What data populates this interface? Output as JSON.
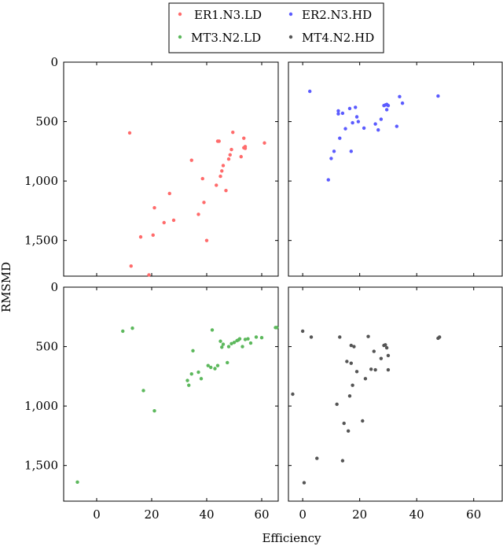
{
  "figure": {
    "xlabel": "Efficiency",
    "ylabel": "RMSMD"
  },
  "legend": {
    "placement": "top-center",
    "entries": [
      {
        "name": "ER1.N3.LD",
        "color": "#ff6b6b"
      },
      {
        "name": "ER2.N3.HD",
        "color": "#5b5bff"
      },
      {
        "name": "MT3.N2.LD",
        "color": "#5cb85c"
      },
      {
        "name": "MT4.N2.HD",
        "color": "#555555"
      }
    ]
  },
  "chart_data": [
    {
      "type": "scatter",
      "name": "ER1.N3.LD",
      "color": "#ff6b6b",
      "panel": "top-left",
      "xlim": [
        -12,
        66
      ],
      "ylim": [
        1800,
        0
      ],
      "y_inverted": true,
      "xticks": [],
      "yticks": [
        0,
        500,
        1000,
        1500
      ],
      "ytick_labels": [
        "0",
        "500",
        "1,000",
        "1,500"
      ],
      "points": [
        [
          12,
          595
        ],
        [
          12.5,
          1715
        ],
        [
          16,
          1470
        ],
        [
          19,
          1790
        ],
        [
          20.5,
          1455
        ],
        [
          21,
          1225
        ],
        [
          24.5,
          1350
        ],
        [
          26.5,
          1105
        ],
        [
          28,
          1330
        ],
        [
          34.5,
          825
        ],
        [
          37,
          1280
        ],
        [
          38.5,
          980
        ],
        [
          39,
          1180
        ],
        [
          40,
          1500
        ],
        [
          43.5,
          1035
        ],
        [
          44,
          665
        ],
        [
          44.5,
          665
        ],
        [
          45,
          960
        ],
        [
          45.5,
          915
        ],
        [
          46,
          870
        ],
        [
          47,
          1080
        ],
        [
          48,
          815
        ],
        [
          48.5,
          780
        ],
        [
          49,
          735
        ],
        [
          49.5,
          590
        ],
        [
          52.5,
          795
        ],
        [
          53.5,
          640
        ],
        [
          53.5,
          720
        ],
        [
          54,
          725
        ],
        [
          54,
          710
        ],
        [
          61,
          680
        ]
      ]
    },
    {
      "type": "scatter",
      "name": "ER2.N3.HD",
      "color": "#5b5bff",
      "panel": "top-right",
      "xlim": [
        -5,
        70
      ],
      "ylim": [
        1800,
        0
      ],
      "y_inverted": true,
      "xticks": [],
      "yticks": [
        0,
        500,
        1000,
        1500
      ],
      "points": [
        [
          2.5,
          245
        ],
        [
          9,
          990
        ],
        [
          10,
          810
        ],
        [
          11,
          750
        ],
        [
          12.5,
          410
        ],
        [
          12.5,
          435
        ],
        [
          13,
          640
        ],
        [
          14,
          430
        ],
        [
          15,
          560
        ],
        [
          16.5,
          390
        ],
        [
          17,
          750
        ],
        [
          17.5,
          510
        ],
        [
          18.5,
          380
        ],
        [
          19,
          460
        ],
        [
          19.5,
          500
        ],
        [
          21.5,
          555
        ],
        [
          25.5,
          520
        ],
        [
          26.5,
          570
        ],
        [
          27.5,
          480
        ],
        [
          28.5,
          365
        ],
        [
          29,
          360
        ],
        [
          29.5,
          355
        ],
        [
          29.5,
          400
        ],
        [
          30,
          365
        ],
        [
          33,
          540
        ],
        [
          34,
          290
        ],
        [
          35,
          345
        ],
        [
          47.5,
          285
        ]
      ]
    },
    {
      "type": "scatter",
      "name": "MT3.N2.LD",
      "color": "#5cb85c",
      "panel": "bottom-left",
      "xlim": [
        -12,
        66
      ],
      "ylim": [
        1800,
        0
      ],
      "y_inverted": true,
      "xticks": [
        0,
        20,
        40,
        60
      ],
      "yticks": [
        0,
        500,
        1000,
        1500
      ],
      "ytick_labels": [
        "0",
        "500",
        "1,000",
        "1,500"
      ],
      "points": [
        [
          -7,
          1640
        ],
        [
          9.5,
          370
        ],
        [
          13,
          345
        ],
        [
          17,
          870
        ],
        [
          21,
          1040
        ],
        [
          33,
          785
        ],
        [
          33.5,
          825
        ],
        [
          34.5,
          730
        ],
        [
          35,
          535
        ],
        [
          37,
          715
        ],
        [
          38,
          770
        ],
        [
          40.5,
          660
        ],
        [
          41.5,
          675
        ],
        [
          42,
          360
        ],
        [
          43,
          685
        ],
        [
          44,
          660
        ],
        [
          45,
          455
        ],
        [
          45.5,
          505
        ],
        [
          46,
          480
        ],
        [
          47.5,
          635
        ],
        [
          48,
          500
        ],
        [
          49,
          475
        ],
        [
          50,
          465
        ],
        [
          51,
          450
        ],
        [
          51.5,
          445
        ],
        [
          52,
          435
        ],
        [
          53,
          500
        ],
        [
          54,
          440
        ],
        [
          55,
          435
        ],
        [
          56,
          470
        ],
        [
          58,
          420
        ],
        [
          60,
          425
        ],
        [
          65,
          340
        ],
        [
          65.5,
          340
        ]
      ]
    },
    {
      "type": "scatter",
      "name": "MT4.N2.HD",
      "color": "#555555",
      "panel": "bottom-right",
      "xlim": [
        -5,
        70
      ],
      "ylim": [
        1800,
        0
      ],
      "y_inverted": true,
      "xticks": [
        0,
        20,
        40,
        60
      ],
      "yticks": [
        0,
        500,
        1000,
        1500
      ],
      "points": [
        [
          -3.5,
          900
        ],
        [
          0,
          370
        ],
        [
          0.5,
          1645
        ],
        [
          3,
          420
        ],
        [
          5,
          1440
        ],
        [
          12,
          985
        ],
        [
          13,
          420
        ],
        [
          14,
          1460
        ],
        [
          14.5,
          1145
        ],
        [
          15.5,
          625
        ],
        [
          16,
          1210
        ],
        [
          16.5,
          915
        ],
        [
          17,
          490
        ],
        [
          17,
          640
        ],
        [
          17.5,
          825
        ],
        [
          18,
          500
        ],
        [
          19,
          710
        ],
        [
          21,
          1125
        ],
        [
          22,
          770
        ],
        [
          23,
          415
        ],
        [
          24,
          690
        ],
        [
          25,
          540
        ],
        [
          25.5,
          695
        ],
        [
          27.5,
          600
        ],
        [
          28.5,
          490
        ],
        [
          29,
          485
        ],
        [
          29.5,
          510
        ],
        [
          30,
          575
        ],
        [
          30,
          695
        ],
        [
          47.5,
          430
        ],
        [
          48,
          420
        ]
      ]
    }
  ]
}
